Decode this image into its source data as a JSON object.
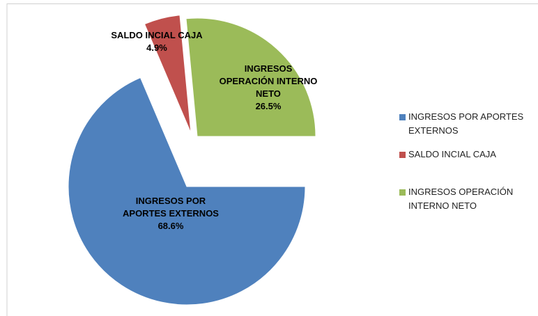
{
  "chart_data": {
    "type": "pie",
    "categories": [
      "INGRESOS POR APORTES EXTERNOS",
      "SALDO INCIAL CAJA",
      "INGRESOS OPERACIÓN INTERNO NETO"
    ],
    "values": [
      68.6,
      4.9,
      26.5
    ],
    "value_labels": [
      "68.6%",
      "4.9%",
      "26.5%"
    ],
    "colors": [
      "#4f81bd",
      "#c0504d",
      "#9bbb59"
    ],
    "legend": "right"
  }
}
